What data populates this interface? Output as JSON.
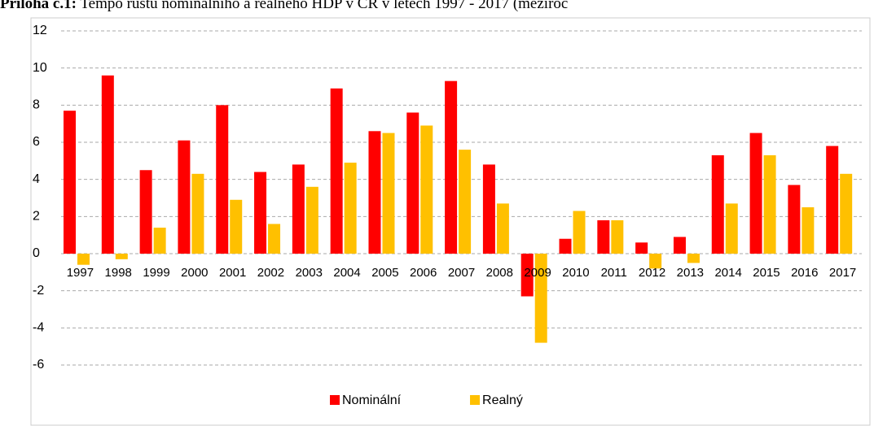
{
  "chart_data": {
    "type": "bar",
    "title_label": "Příloha č.1:",
    "title": "Tempo růstu nominálního a reálného HDP v ČR v letech 1997 - 2017 (meziroč",
    "categories": [
      "1997",
      "1998",
      "1999",
      "2000",
      "2001",
      "2002",
      "2003",
      "2004",
      "2005",
      "2006",
      "2007",
      "2008",
      "2009",
      "2010",
      "2011",
      "2012",
      "2013",
      "2014",
      "2015",
      "2016",
      "2017"
    ],
    "series": [
      {
        "name": "Nominální",
        "color": "#ff0000",
        "values": [
          7.7,
          9.6,
          4.5,
          6.1,
          8.0,
          4.4,
          4.8,
          8.9,
          6.6,
          7.6,
          9.3,
          4.8,
          -2.3,
          0.8,
          1.8,
          0.6,
          0.9,
          5.3,
          6.5,
          3.7,
          5.8
        ]
      },
      {
        "name": "Realný",
        "color": "#ffc000",
        "values": [
          -0.6,
          -0.3,
          1.4,
          4.3,
          2.9,
          1.6,
          3.6,
          4.9,
          6.5,
          6.9,
          5.6,
          2.7,
          -4.8,
          2.3,
          1.8,
          -0.8,
          -0.5,
          2.7,
          5.3,
          2.5,
          4.3
        ]
      }
    ],
    "ylim": [
      -6,
      12
    ],
    "yticks": [
      -6,
      -4,
      -2,
      0,
      2,
      4,
      6,
      8,
      10,
      12
    ],
    "grid": true,
    "legend": "bottom"
  }
}
